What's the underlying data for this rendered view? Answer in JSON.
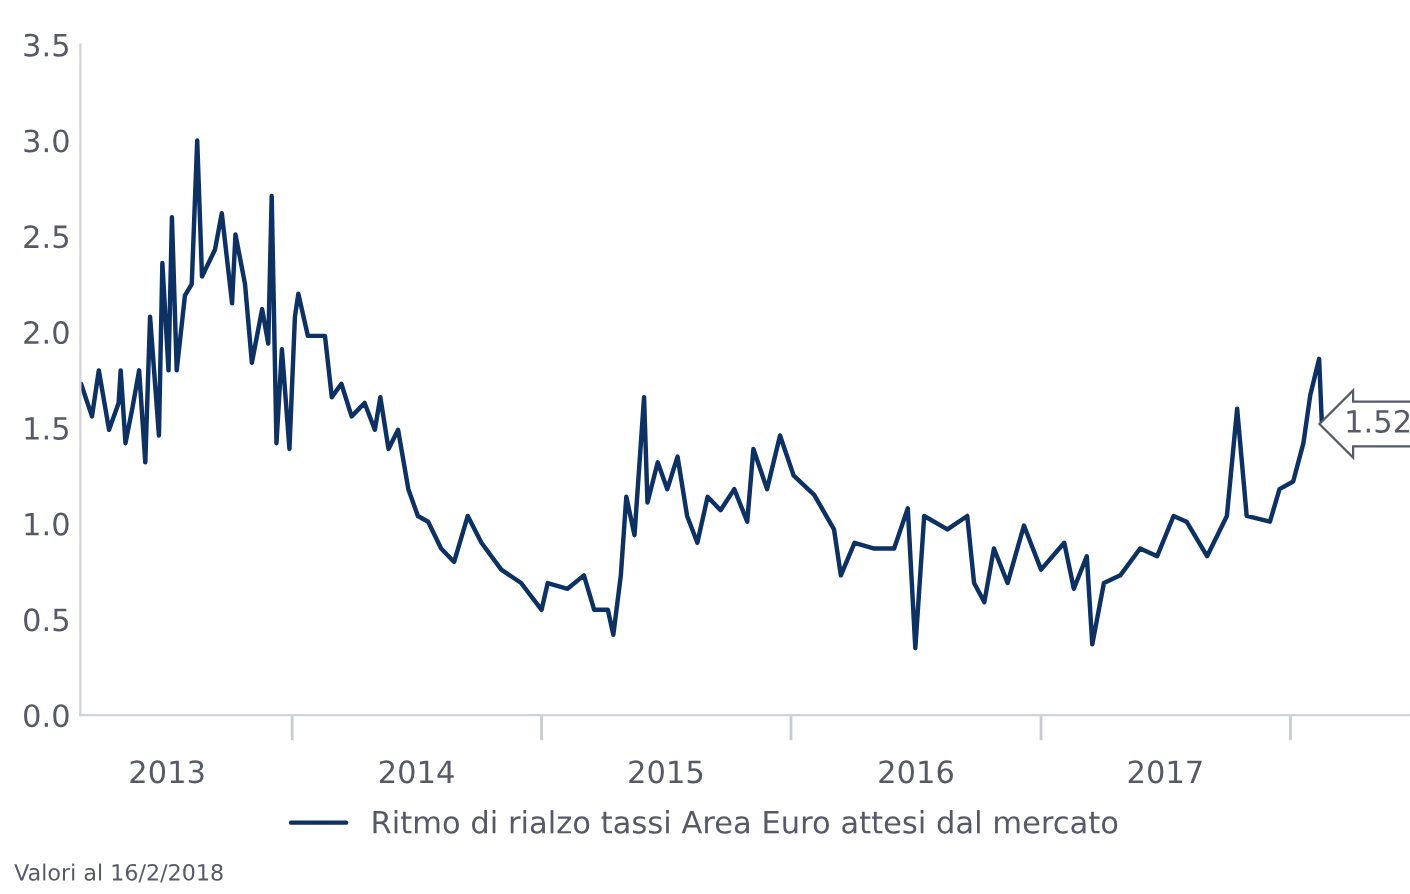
{
  "chart_data": {
    "type": "line",
    "x": [
      "2013-02-26",
      "2013-03-14",
      "2013-03-24",
      "2013-04-08",
      "2013-04-22",
      "2013-04-25",
      "2013-05-02",
      "2013-05-12",
      "2013-05-22",
      "2013-05-31",
      "2013-06-07",
      "2013-06-20",
      "2013-06-25",
      "2013-07-04",
      "2013-07-09",
      "2013-07-16",
      "2013-07-28",
      "2013-08-07",
      "2013-08-15",
      "2013-08-22",
      "2013-09-10",
      "2013-09-20",
      "2013-10-05",
      "2013-10-10",
      "2013-10-24",
      "2013-11-03",
      "2013-11-18",
      "2013-11-27",
      "2013-12-02",
      "2013-12-09",
      "2013-12-17",
      "2013-12-28",
      "2014-01-05",
      "2014-01-10",
      "2014-01-24",
      "2014-02-18",
      "2014-02-28",
      "2014-03-14",
      "2014-03-29",
      "2014-04-17",
      "2014-05-02",
      "2014-05-10",
      "2014-05-22",
      "2014-06-05",
      "2014-06-20",
      "2014-07-04",
      "2014-07-19",
      "2014-08-07",
      "2014-08-26",
      "2014-09-15",
      "2014-10-05",
      "2014-11-03",
      "2014-12-02",
      "2015-01-01",
      "2015-01-10",
      "2015-02-08",
      "2015-03-04",
      "2015-03-19",
      "2015-04-08",
      "2015-04-16",
      "2015-04-27",
      "2015-05-05",
      "2015-05-17",
      "2015-05-31",
      "2015-06-05",
      "2015-06-20",
      "2015-07-04",
      "2015-07-19",
      "2015-08-02",
      "2015-08-17",
      "2015-09-01",
      "2015-09-20",
      "2015-10-10",
      "2015-10-29",
      "2015-11-07",
      "2015-11-27",
      "2015-12-16",
      "2016-01-05",
      "2016-02-04",
      "2016-03-04",
      "2016-03-14",
      "2016-04-03",
      "2016-05-02",
      "2016-05-31",
      "2016-06-20",
      "2016-07-01",
      "2016-07-14",
      "2016-08-17",
      "2016-09-15",
      "2016-09-25",
      "2016-10-10",
      "2016-10-24",
      "2016-11-13",
      "2016-12-07",
      "2017-01-01",
      "2017-02-04",
      "2017-02-18",
      "2017-03-09",
      "2017-03-17",
      "2017-04-03",
      "2017-04-27",
      "2017-05-26",
      "2017-06-20",
      "2017-07-14",
      "2017-08-02",
      "2017-09-01",
      "2017-09-30",
      "2017-10-15",
      "2017-10-29",
      "2017-12-02",
      "2017-12-16",
      "2018-01-05",
      "2018-01-20",
      "2018-01-30",
      "2018-02-12",
      "2018-02-16"
    ],
    "series": [
      {
        "name": "Ritmo di rialzo tassi Area Euro attesi dal mercato",
        "color": "#0d3163",
        "values": [
          1.73,
          1.56,
          1.8,
          1.49,
          1.63,
          1.8,
          1.42,
          1.6,
          1.8,
          1.32,
          2.08,
          1.46,
          2.36,
          1.8,
          2.6,
          1.8,
          2.19,
          2.25,
          3.0,
          2.29,
          2.43,
          2.62,
          2.15,
          2.51,
          2.25,
          1.84,
          2.12,
          1.94,
          2.71,
          1.42,
          1.91,
          1.39,
          2.08,
          2.2,
          1.98,
          1.98,
          1.66,
          1.73,
          1.56,
          1.63,
          1.49,
          1.66,
          1.39,
          1.49,
          1.18,
          1.04,
          1.01,
          0.87,
          0.8,
          1.04,
          0.9,
          0.76,
          0.69,
          0.55,
          0.69,
          0.66,
          0.73,
          0.55,
          0.55,
          0.42,
          0.73,
          1.14,
          0.94,
          1.66,
          1.11,
          1.32,
          1.18,
          1.35,
          1.04,
          0.9,
          1.14,
          1.07,
          1.18,
          1.01,
          1.39,
          1.18,
          1.46,
          1.25,
          1.15,
          0.97,
          0.73,
          0.9,
          0.87,
          0.87,
          1.08,
          0.35,
          1.04,
          0.97,
          1.04,
          0.69,
          0.59,
          0.87,
          0.69,
          0.99,
          0.76,
          0.9,
          0.66,
          0.83,
          0.37,
          0.69,
          0.73,
          0.87,
          0.83,
          1.04,
          1.01,
          0.83,
          1.04,
          1.6,
          1.04,
          1.01,
          1.18,
          1.22,
          1.42,
          1.67,
          1.86,
          1.52
        ]
      }
    ],
    "xlim": [
      "2013-02-25",
      "2018-06-25"
    ],
    "xticks": [
      {
        "value": "2013-07-02",
        "label": "2013"
      },
      {
        "value": "2014-01-01",
        "label": null
      },
      {
        "value": "2014-07-02",
        "label": "2014"
      },
      {
        "value": "2015-01-01",
        "label": null
      },
      {
        "value": "2015-07-02",
        "label": "2015"
      },
      {
        "value": "2016-01-01",
        "label": null
      },
      {
        "value": "2016-07-02",
        "label": "2016"
      },
      {
        "value": "2017-01-01",
        "label": null
      },
      {
        "value": "2017-07-02",
        "label": "2017"
      },
      {
        "value": "2018-01-01",
        "label": null
      }
    ],
    "ylim": [
      0,
      3.5
    ],
    "yticks": [
      {
        "value": 0,
        "label": "0.0"
      },
      {
        "value": 0.5,
        "label": "0.5"
      },
      {
        "value": 1,
        "label": "1.0"
      },
      {
        "value": 1.5,
        "label": "1.5"
      },
      {
        "value": 2,
        "label": "2.0"
      },
      {
        "value": 2.5,
        "label": "2.5"
      },
      {
        "value": 3,
        "label": "3.0"
      },
      {
        "value": 3.5,
        "label": "3.5"
      }
    ],
    "annotations": [
      {
        "text": "1.52",
        "x": "2018-02-16",
        "y": 1.52
      },
      "Valori al 16/2/2018"
    ],
    "legend": "bottom"
  }
}
